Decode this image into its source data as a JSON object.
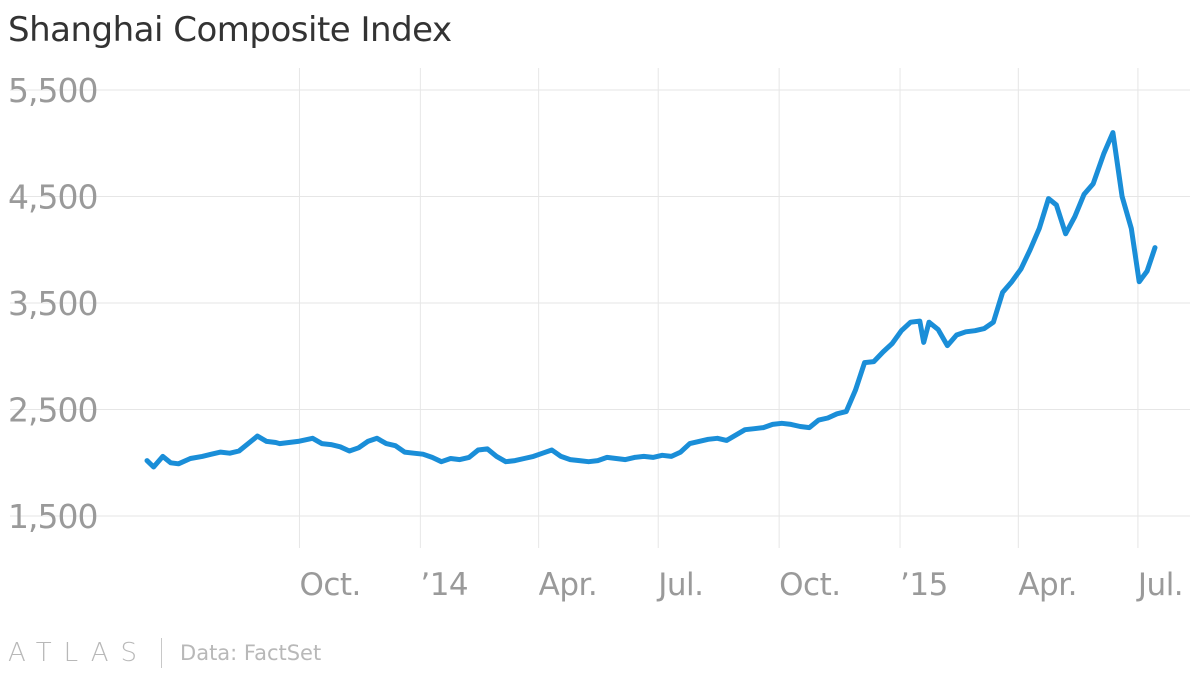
{
  "title": "Shanghai Composite Index",
  "footer": {
    "brand": "ATLAS",
    "source": "Data: FactSet"
  },
  "colors": {
    "line": "#1a8ed8",
    "grid": "#e6e6e6",
    "text": "#9a9a9a"
  },
  "chart_data": {
    "type": "line",
    "title": "Shanghai Composite Index",
    "xlabel": "",
    "ylabel": "",
    "ylim": [
      1500,
      5500
    ],
    "yticks": [
      1500,
      2500,
      3500,
      4500,
      5500
    ],
    "ytick_labels": [
      "1,500",
      "2,500",
      "3,500",
      "4,500",
      "5,500"
    ],
    "xlim": [
      "2013-06-07",
      "2015-07-14"
    ],
    "xticks": [
      {
        "date": "2013-10-01",
        "label": "Oct."
      },
      {
        "date": "2014-01-01",
        "label": "’14"
      },
      {
        "date": "2014-04-01",
        "label": "Apr."
      },
      {
        "date": "2014-07-01",
        "label": "Jul."
      },
      {
        "date": "2014-10-01",
        "label": "Oct."
      },
      {
        "date": "2015-01-01",
        "label": "’15"
      },
      {
        "date": "2015-04-01",
        "label": "Apr."
      },
      {
        "date": "2015-07-01",
        "label": "Jul."
      }
    ],
    "grid": true,
    "series": [
      {
        "x": [
          "2013-06-07",
          "2013-06-12",
          "2013-06-19",
          "2013-06-25",
          "2013-07-01",
          "2013-07-10",
          "2013-07-19",
          "2013-07-26",
          "2013-08-02",
          "2013-08-09",
          "2013-08-16",
          "2013-08-23",
          "2013-08-30",
          "2013-09-06",
          "2013-09-13",
          "2013-09-16",
          "2013-09-23",
          "2013-09-30",
          "2013-10-11",
          "2013-10-18",
          "2013-10-25",
          "2013-11-01",
          "2013-11-08",
          "2013-11-15",
          "2013-11-22",
          "2013-11-29",
          "2013-12-06",
          "2013-12-13",
          "2013-12-20",
          "2013-12-27",
          "2014-01-03",
          "2014-01-10",
          "2014-01-17",
          "2014-01-24",
          "2014-01-31",
          "2014-02-07",
          "2014-02-14",
          "2014-02-21",
          "2014-02-28",
          "2014-03-07",
          "2014-03-14",
          "2014-03-21",
          "2014-03-28",
          "2014-04-04",
          "2014-04-11",
          "2014-04-18",
          "2014-04-25",
          "2014-05-02",
          "2014-05-09",
          "2014-05-16",
          "2014-05-23",
          "2014-05-30",
          "2014-06-06",
          "2014-06-13",
          "2014-06-20",
          "2014-06-27",
          "2014-07-04",
          "2014-07-11",
          "2014-07-18",
          "2014-07-25",
          "2014-08-01",
          "2014-08-08",
          "2014-08-15",
          "2014-08-22",
          "2014-08-29",
          "2014-09-05",
          "2014-09-12",
          "2014-09-19",
          "2014-09-26",
          "2014-10-03",
          "2014-10-10",
          "2014-10-17",
          "2014-10-24",
          "2014-10-31",
          "2014-11-07",
          "2014-11-14",
          "2014-11-21",
          "2014-11-28",
          "2014-12-05",
          "2014-12-12",
          "2014-12-19",
          "2014-12-26",
          "2015-01-02",
          "2015-01-09",
          "2015-01-16",
          "2015-01-19",
          "2015-01-23",
          "2015-01-30",
          "2015-02-06",
          "2015-02-13",
          "2015-02-20",
          "2015-02-27",
          "2015-03-06",
          "2015-03-13",
          "2015-03-20",
          "2015-03-27",
          "2015-04-03",
          "2015-04-10",
          "2015-04-17",
          "2015-04-24",
          "2015-04-30",
          "2015-05-07",
          "2015-05-14",
          "2015-05-21",
          "2015-05-28",
          "2015-06-05",
          "2015-06-12",
          "2015-06-19",
          "2015-06-26",
          "2015-07-02",
          "2015-07-08",
          "2015-07-14"
        ],
        "y": [
          2020,
          1960,
          2060,
          2000,
          1990,
          2040,
          2060,
          2080,
          2100,
          2090,
          2110,
          2180,
          2250,
          2200,
          2190,
          2180,
          2190,
          2200,
          2230,
          2180,
          2170,
          2150,
          2110,
          2140,
          2200,
          2230,
          2180,
          2160,
          2100,
          2090,
          2080,
          2050,
          2010,
          2040,
          2030,
          2050,
          2120,
          2130,
          2060,
          2010,
          2020,
          2040,
          2060,
          2090,
          2120,
          2060,
          2030,
          2020,
          2010,
          2020,
          2050,
          2040,
          2030,
          2050,
          2060,
          2050,
          2070,
          2060,
          2100,
          2180,
          2200,
          2220,
          2230,
          2210,
          2260,
          2310,
          2320,
          2330,
          2360,
          2370,
          2360,
          2340,
          2330,
          2400,
          2420,
          2460,
          2480,
          2680,
          2940,
          2950,
          3040,
          3120,
          3240,
          3320,
          3330,
          3130,
          3320,
          3250,
          3100,
          3200,
          3230,
          3240,
          3260,
          3320,
          3600,
          3700,
          3820,
          4000,
          4200,
          4480,
          4420,
          4150,
          4310,
          4520,
          4620,
          4900,
          5100,
          4500,
          4200,
          3700,
          3800,
          4020
        ]
      }
    ]
  }
}
